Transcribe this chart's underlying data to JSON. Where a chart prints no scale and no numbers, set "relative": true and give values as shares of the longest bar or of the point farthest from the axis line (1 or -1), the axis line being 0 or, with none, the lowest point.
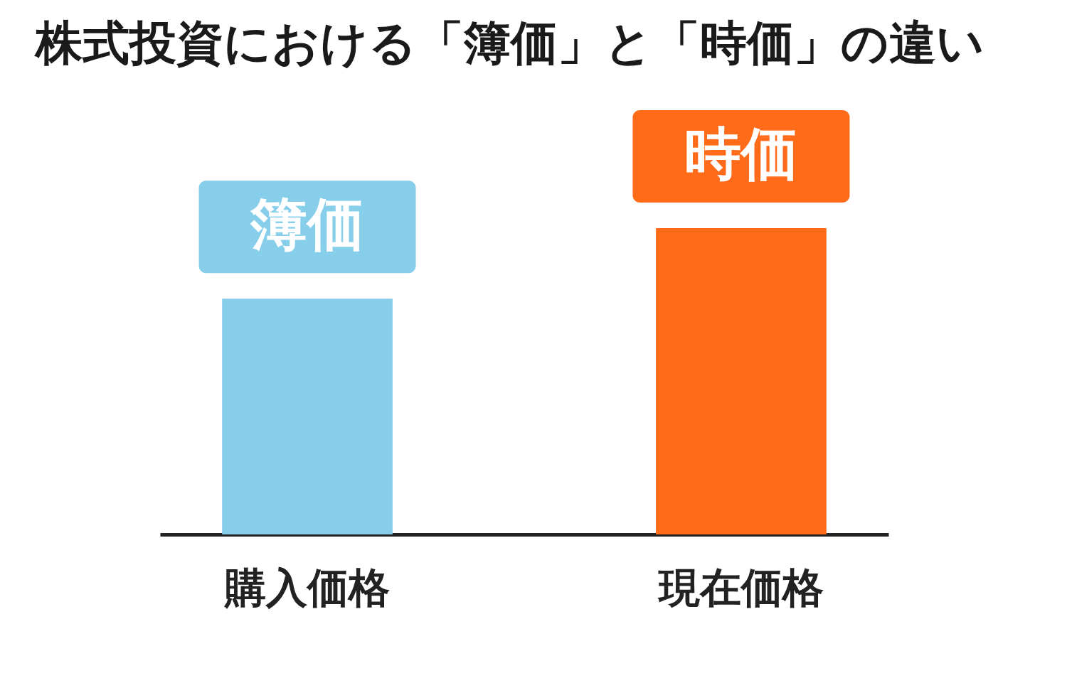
{
  "chart_data": {
    "type": "bar",
    "title": "株式投資における「簿価」と「時価」の違い",
    "categories": [
      "購入価格",
      "現在価格"
    ],
    "relative": true,
    "series": [
      {
        "name": "簿価",
        "color": "#87ceeb",
        "values": [
          0.77,
          null
        ]
      },
      {
        "name": "時価",
        "color": "#ff6b18",
        "values": [
          null,
          1
        ]
      }
    ]
  }
}
